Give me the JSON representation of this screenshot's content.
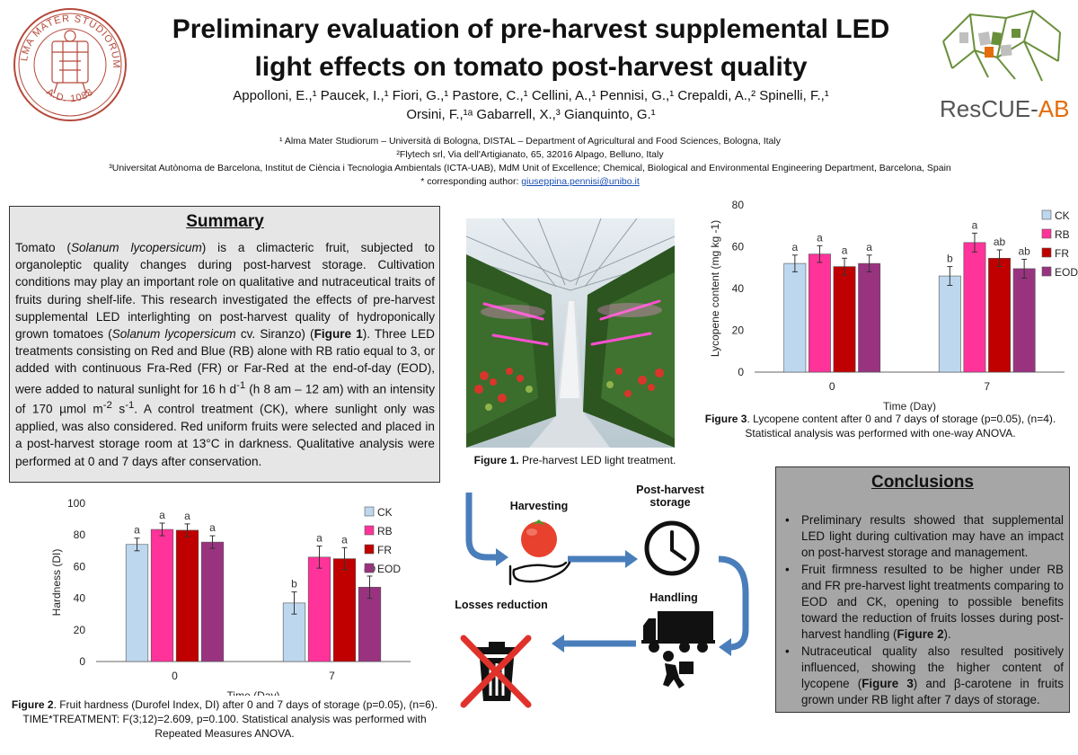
{
  "header": {
    "title_line1": "Preliminary evaluation of pre-harvest supplemental LED",
    "title_line2": "light effects on tomato post-harvest quality",
    "authors_line1": "Appolloni, E.,¹ Paucek, I.,¹ Fiori, G.,¹ Pastore, C.,¹ Cellini, A.,¹ Pennisi, G.,¹ Crepaldi, A.,² Spinelli, F.,¹",
    "authors_line2": "Orsini, F.,¹ᵃ Gabarrell, X.,³ Gianquinto, G.¹",
    "affiliation1": "¹ Alma Mater Studiorum – Università di Bologna, DISTAL – Department of Agricultural and Food Sciences, Bologna, Italy",
    "affiliation2": "²Flytech srl, Via dell'Artigianato, 65, 32016 Alpago, Belluno, Italy",
    "affiliation3": "³Universitat Autònoma de Barcelona, Institut de Ciència i Tecnologia Ambientals (ICTA-UAB), MdM Unit of Excellence; Chemical, Biological and Environmental Engineering Department, Barcelona, Spain",
    "corresponding_prefix": "* corresponding author:",
    "corresponding_email": "giuseppina.pennisi@unibo.it"
  },
  "logos": {
    "left_text_top": "ALMA MATER STUDIORUM",
    "left_text_bottom": "A.D. 1088",
    "right_text_main": "ResCUE-",
    "right_text_accent": "AB"
  },
  "summary": {
    "heading": "Summary",
    "p1": "Tomato (",
    "p1_italic": "Solanum lycopersicum",
    "p2": ") is a climacteric fruit, subjected to organoleptic quality changes during post-harvest storage. Cultivation conditions may play an important role on qualitative and nutraceutical traits of fruits during shelf-life. This research investigated the effects of pre-harvest supplemental LED interlighting on post-harvest quality of hydroponically grown tomatoes (",
    "p2_italic": "Solanum lycopersicum",
    "p3": " cv. Siranzo) (",
    "p3_bold": "Figure 1",
    "p4": "). Three LED treatments consisting on Red and Blue (RB) alone with RB ratio equal to 3, or added with continuous Fra-Red (FR) or Far-Red at the end-of-day (EOD), were added to natural sunlight for 16 h d",
    "p4_sup": "-1",
    "p5": " (h 8 am – 12 am) with an intensity of 170 µmol m",
    "p5_sup": "-2",
    "p6": " s",
    "p6_sup": "-1",
    "p7": ". A control treatment (CK), where sunlight only was applied, was also considered. Red uniform fruits were selected and placed in a post-harvest storage room at 13°C in darkness. Qualitative analysis were performed at 0 and 7 days after conservation."
  },
  "figure1": {
    "caption_bold": "Figure 1.",
    "caption_text": " Pre-harvest LED light treatment."
  },
  "figure3": {
    "caption_bold": "Figure 3",
    "caption_text": ". Lycopene content after 0 and 7 days of storage (p=0.05), (n=4). Statistical analysis was performed with one-way ANOVA."
  },
  "figure2": {
    "caption_bold": "Figure 2",
    "caption_text": ". Fruit hardness (Durofel Index, DI) after 0 and 7 days of storage (p=0.05), (n=6). TIME*TREATMENT: F(3;12)=2.609, p=0.100. Statistical analysis was performed with Repeated Measures ANOVA."
  },
  "flow": {
    "harvesting": "Harvesting",
    "post_harvest_line1": "Post-harvest",
    "post_harvest_line2": "storage",
    "handling": "Handling",
    "losses": "Losses reduction"
  },
  "conclusions": {
    "heading": "Conclusions",
    "b1": "Preliminary results showed that supplemental LED light during cultivation may have an impact on post-harvest storage and management.",
    "b2_a": "Fruit firmness resulted to be higher under RB and FR pre-harvest light treatments comparing to EOD and CK, opening to possible benefits toward the reduction of fruits losses during post-harvest handling (",
    "b2_bold": "Figure 2",
    "b2_b": ").",
    "b3_a": "Nutraceutical quality also resulted positively influenced, showing the higher content of lycopene (",
    "b3_bold": "Figure 3",
    "b3_b": ") and β-carotene in fruits grown under RB light after 7 days of storage."
  },
  "colors": {
    "CK": "#bdd7ee",
    "RB": "#ff3399",
    "FR": "#c00000",
    "EOD": "#993380",
    "rescue_accent": "#e46c0a",
    "rescue_green": "#6a8f3c",
    "unibo_red": "#b5493b"
  },
  "chart_data": [
    {
      "id": "figure3",
      "type": "bar",
      "categories": [
        "0",
        "7"
      ],
      "series": [
        {
          "name": "CK",
          "values": [
            52,
            46
          ],
          "errors": [
            4,
            4.5
          ],
          "letters": [
            "a",
            "b"
          ]
        },
        {
          "name": "RB",
          "values": [
            56.5,
            62
          ],
          "errors": [
            4,
            4.5
          ],
          "letters": [
            "a",
            "a"
          ]
        },
        {
          "name": "FR",
          "values": [
            50.5,
            54.5
          ],
          "errors": [
            4,
            4
          ],
          "letters": [
            "a",
            "ab"
          ]
        },
        {
          "name": "EOD",
          "values": [
            52,
            49.5
          ],
          "errors": [
            4,
            4.5
          ],
          "letters": [
            "a",
            "ab"
          ]
        }
      ],
      "xlabel": "Time (Day)",
      "ylabel": "Lycopene content (mg kg -1)",
      "ylim": [
        0,
        80
      ],
      "yticks": [
        0,
        20,
        40,
        60,
        80
      ],
      "legend": "right"
    },
    {
      "id": "figure2",
      "type": "bar",
      "categories": [
        "0",
        "7"
      ],
      "series": [
        {
          "name": "CK",
          "values": [
            74,
            37
          ],
          "errors": [
            4,
            7
          ],
          "letters": [
            "a",
            "b"
          ]
        },
        {
          "name": "RB",
          "values": [
            83.5,
            66
          ],
          "errors": [
            4,
            7
          ],
          "letters": [
            "a",
            "a"
          ]
        },
        {
          "name": "FR",
          "values": [
            83,
            65
          ],
          "errors": [
            4,
            7
          ],
          "letters": [
            "a",
            "a"
          ]
        },
        {
          "name": "EOD",
          "values": [
            75.5,
            47
          ],
          "errors": [
            4,
            7
          ],
          "letters": [
            "a",
            "ab"
          ]
        }
      ],
      "xlabel": "Time (Day)",
      "ylabel": "Hardness (DI)",
      "ylim": [
        0,
        100
      ],
      "yticks": [
        0,
        20,
        40,
        60,
        80,
        100
      ],
      "legend": "right"
    }
  ]
}
